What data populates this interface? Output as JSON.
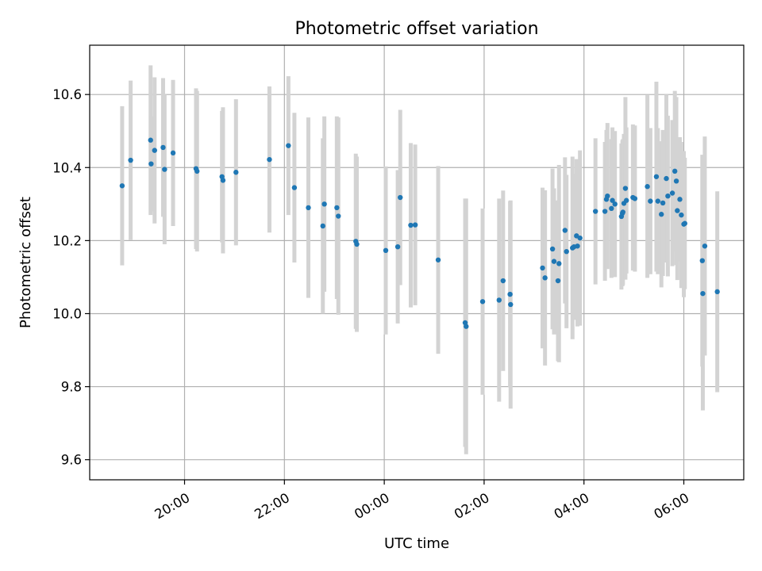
{
  "chart_data": {
    "type": "scatter",
    "title": "Photometric offset variation",
    "xlabel": "UTC time",
    "ylabel": "Photometric offset",
    "x_ticks": [
      "20:00",
      "22:00",
      "00:00",
      "02:00",
      "04:00",
      "06:00"
    ],
    "x_tick_hours": [
      20,
      22,
      24,
      26,
      28,
      30
    ],
    "xlim_hours": [
      18.1,
      31.2
    ],
    "y_ticks": [
      "9.6",
      "9.8",
      "10.0",
      "10.2",
      "10.4",
      "10.6"
    ],
    "ylim": [
      9.545,
      10.735
    ],
    "grid": true,
    "colors": {
      "marker": "#1f77b4",
      "errorbar": "#d3d3d3"
    },
    "series": [
      {
        "x_hours": [
          18.75,
          18.92,
          19.32,
          19.33,
          19.4,
          19.57,
          19.6,
          19.77,
          20.23,
          20.25,
          20.75,
          20.77,
          21.03,
          21.7,
          22.08,
          22.2,
          22.48,
          22.77,
          22.8,
          23.05,
          23.08,
          23.43,
          23.45,
          24.03,
          24.27,
          24.32,
          24.53,
          24.62,
          25.08,
          25.62,
          25.64,
          25.97,
          26.3,
          26.38,
          26.52,
          26.53,
          27.17,
          27.22,
          27.37,
          27.4,
          27.48,
          27.5,
          27.62,
          27.65,
          27.77,
          27.8,
          27.85,
          27.87,
          27.92,
          28.23,
          28.42,
          28.45,
          28.47,
          28.55,
          28.57,
          28.62,
          28.75,
          28.77,
          28.78,
          28.8,
          28.83,
          28.85,
          28.98,
          29.02,
          29.27,
          29.33,
          29.45,
          29.48,
          29.55,
          29.58,
          29.65,
          29.68,
          29.77,
          29.82,
          29.85,
          29.87,
          29.92,
          29.95,
          30.0,
          30.02,
          30.37,
          30.38,
          30.42,
          30.67
        ],
        "y": [
          10.35,
          10.42,
          10.475,
          10.41,
          10.447,
          10.455,
          10.395,
          10.44,
          10.397,
          10.39,
          10.375,
          10.365,
          10.387,
          10.422,
          10.46,
          10.345,
          10.29,
          10.24,
          10.3,
          10.29,
          10.267,
          10.198,
          10.19,
          10.173,
          10.183,
          10.318,
          10.242,
          10.243,
          10.147,
          9.975,
          9.965,
          10.033,
          10.037,
          10.09,
          10.053,
          10.025,
          10.125,
          10.098,
          10.177,
          10.143,
          10.09,
          10.137,
          10.228,
          10.17,
          10.18,
          10.183,
          10.213,
          10.185,
          10.207,
          10.28,
          10.28,
          10.313,
          10.322,
          10.288,
          10.31,
          10.3,
          10.266,
          10.275,
          10.278,
          10.302,
          10.343,
          10.31,
          10.318,
          10.315,
          10.348,
          10.308,
          10.375,
          10.308,
          10.272,
          10.303,
          10.37,
          10.322,
          10.33,
          10.39,
          10.363,
          10.282,
          10.313,
          10.27,
          10.245,
          10.247,
          10.145,
          10.055,
          10.185,
          10.06
        ],
        "yerr": [
          0.218,
          0.218,
          0.205,
          0.13,
          0.2,
          0.19,
          0.205,
          0.2,
          0.22,
          0.22,
          0.18,
          0.2,
          0.2,
          0.2,
          0.19,
          0.205,
          0.247,
          0.24,
          0.24,
          0.25,
          0.27,
          0.24,
          0.24,
          0.23,
          0.21,
          0.24,
          0.225,
          0.22,
          0.257,
          0.34,
          0.35,
          0.255,
          0.278,
          0.247,
          0.255,
          0.285,
          0.22,
          0.24,
          0.22,
          0.2,
          0.22,
          0.27,
          0.2,
          0.21,
          0.25,
          0.2,
          0.21,
          0.22,
          0.24,
          0.2,
          0.19,
          0.19,
          0.2,
          0.19,
          0.2,
          0.2,
          0.2,
          0.2,
          0.2,
          0.19,
          0.25,
          0.2,
          0.2,
          0.2,
          0.25,
          0.2,
          0.26,
          0.2,
          0.2,
          0.2,
          0.23,
          0.22,
          0.2,
          0.22,
          0.23,
          0.19,
          0.17,
          0.2,
          0.2,
          0.18,
          0.29,
          0.32,
          0.3,
          0.275
        ]
      }
    ]
  }
}
